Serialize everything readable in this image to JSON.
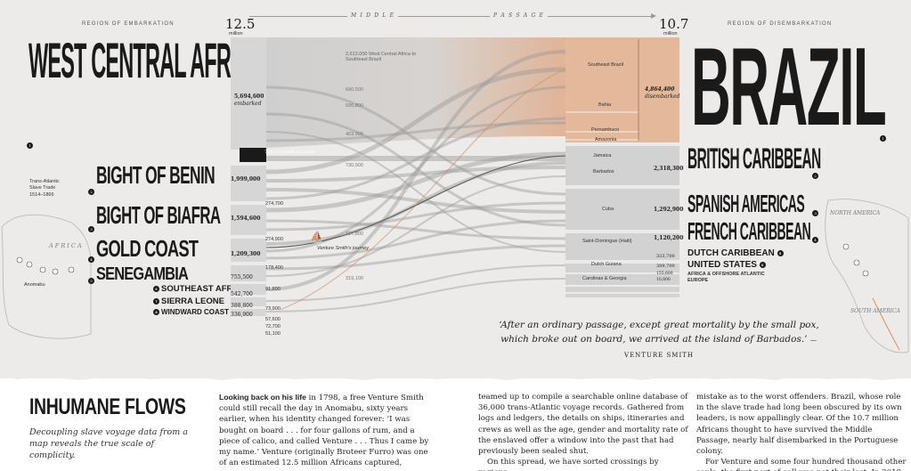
{
  "header": {
    "left_cap": "REGION OF EMBARKATION",
    "right_cap": "REGION OF DISEMBARKATION",
    "middle_left": "M I D D L E",
    "middle_right": "P A S S A G E",
    "left_total": "12.5",
    "left_unit": "million",
    "right_total": "10.7",
    "right_unit": "million"
  },
  "embarkation": [
    {
      "name": "WEST CENTRAL AFRICA",
      "num": "1"
    },
    {
      "name": "BIGHT OF BENIN",
      "num": "2"
    },
    {
      "name": "BIGHT OF BIAFRA",
      "num": "3"
    },
    {
      "name": "GOLD COAST",
      "num": "4"
    },
    {
      "name": "SENEGAMBIA",
      "num": "5"
    },
    {
      "name": "SOUTHEAST AFRICA",
      "num": "6"
    },
    {
      "name": "SIERRA LEONE",
      "num": "7"
    },
    {
      "name": "WINDWARD COAST",
      "num": "8"
    }
  ],
  "disembarkation": [
    {
      "name": "BRAZIL",
      "num": "1"
    },
    {
      "name": "BRITISH CARIBBEAN",
      "num": "2"
    },
    {
      "name": "SPANISH AMERICAS",
      "num": "3"
    },
    {
      "name": "FRENCH CARIBBEAN",
      "num": "4"
    },
    {
      "name": "DUTCH CARIBBEAN",
      "num": "5"
    },
    {
      "name": "UNITED STATES",
      "num": "6"
    },
    {
      "name": "AFRICA & OFFSHORE ATLANTIC",
      "num": ""
    },
    {
      "name": "EUROPE",
      "num": ""
    }
  ],
  "left_values": {
    "embarked": "5,694,600",
    "embarked_note": "embarked",
    "died": "729,100 died en route",
    "v2": "1,999,000",
    "v3": "1,594,600",
    "v4": "1,209,300",
    "v5": "755,500",
    "v6": "542,700",
    "v7": "388,800",
    "v8": "336,900",
    "s2": "274,700",
    "s4": "274,900",
    "s5": "178,400",
    "s6": "91,800",
    "s7": "73,900",
    "s8": "57,600",
    "s9": "72,700",
    "s10": "51,100"
  },
  "flow_labels": {
    "wca_brazil": "2,612,000 West Central Africa to Southeast Brazil",
    "a": "690,500",
    "b": "696,800",
    "c": "403,900",
    "d": "730,900",
    "e": "317,800",
    "f": "319,100",
    "ship": "Venture Smith's journey"
  },
  "right_regions": [
    "Southeast Brazil",
    "Bahia",
    "Pernambuco",
    "Amazonia",
    "Jamaica",
    "Barbados",
    "Cuba",
    "Saint-Domingue (Haiti)",
    "Dutch Guiana",
    "Carolinas & Georgia"
  ],
  "right_values": {
    "brazil": "4,864,400",
    "brazil_note": "disembarked",
    "british": "2,318,300",
    "spanish": "1,292,900",
    "french": "1,120,200",
    "dutch": "333,700",
    "us": "389,700",
    "africa": "155,600",
    "europe": "10,800"
  },
  "side_note": {
    "l1": "Trans-Atlantic",
    "l2": "Slave Trade",
    "l3": "1514–1866"
  },
  "map_labels": {
    "africa": "A F R I C A",
    "anomabu": "Anomabu",
    "north_america": "NORTH AMERICA",
    "south_america": "SOUTH AMERICA"
  },
  "quote": {
    "text": "‘After an ordinary passage, except great mortality by the small pox, which broke out on board, we arrived at the island of Barbados.’",
    "author": "—VENTURE SMITH"
  },
  "article": {
    "title": "INHUMANE FLOWS",
    "deck": "Decoupling slave voyage data from a map reveals the true scale of complicity.",
    "col1_lead": "Looking back on his life",
    "col1": " in 1798, a free Venture Smith could still recall the day in Anomabu, sixty years earlier, when his identity changed forever: ‘I was bought on board . . . for four gallons of rum, and a piece of calico, and called Venture . . . Thus I came by my name.’ Venture (originally Broteer Furro) was one of an estimated 12.5 million Africans captured,",
    "col2": "teamed up to compile a searchable online database of 36,000 trans-Atlantic voyage records. Gathered from logs and ledgers, the details on ships, itineraries and crews as well as the age, gender and mortality rate of the enslaved offer a window into the past that had previously been sealed shut.",
    "col2b": "On this spread, we have sorted crossings by regions",
    "col3": "mistake as to the worst offenders. Brazil, whose role in the slave trade had long been obscured by its own leaders, is now appallingly clear. Of the 10.7 million Africans thought to have survived the Middle Passage, nearly half disembarked in the Portuguese colony.",
    "col3b": "For Venture and some four hundred thousand other souls, the first port of call was not their last. In 2019,"
  },
  "colors": {
    "brazil_block": "#e4b89a",
    "flow_gray": "#8a8a8a",
    "paper": "#ecebea",
    "dark": "#1a1a1a"
  }
}
